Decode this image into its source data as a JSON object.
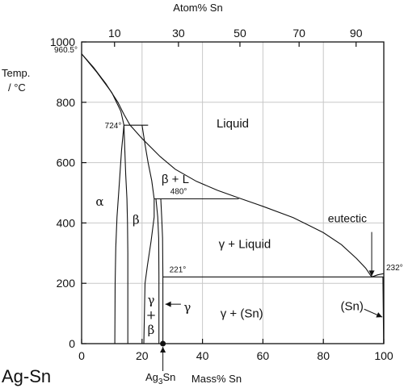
{
  "chart_data": {
    "type": "phase-diagram",
    "title": "Ag-Sn",
    "xlabel": "Mass% Sn",
    "x2label": "Atom% Sn",
    "ylabel": "Temp. / °C",
    "xlim": [
      0,
      100
    ],
    "ylim": [
      0,
      1000
    ],
    "x_ticks": [
      0,
      20,
      40,
      60,
      80,
      100
    ],
    "x2_ticks": [
      10,
      30,
      50,
      70,
      90
    ],
    "y_ticks": [
      0,
      200,
      400,
      600,
      800,
      1000
    ],
    "grid": true,
    "series": [
      {
        "kind": "liquidus",
        "points": [
          [
            0,
            960.5
          ],
          [
            4,
            915
          ],
          [
            8,
            862
          ],
          [
            12,
            800
          ],
          [
            14,
            760
          ],
          [
            16,
            725
          ],
          [
            20,
            680
          ],
          [
            26,
            620
          ],
          [
            31,
            578
          ],
          [
            38,
            538
          ],
          [
            45,
            508
          ],
          [
            52,
            483
          ],
          [
            60,
            455
          ],
          [
            70,
            418
          ],
          [
            80,
            368
          ],
          [
            86,
            328
          ],
          [
            91,
            282
          ],
          [
            94,
            250
          ],
          [
            96,
            221
          ],
          [
            98,
            228
          ],
          [
            100,
            232
          ]
        ]
      },
      {
        "kind": "solidus-alpha",
        "points": [
          [
            0,
            960.5
          ],
          [
            5,
            900
          ],
          [
            10,
            832
          ],
          [
            13,
            770
          ],
          [
            14,
            724
          ],
          [
            13.2,
            640
          ],
          [
            12.4,
            520
          ],
          [
            11.7,
            420
          ],
          [
            11.3,
            320
          ],
          [
            11.1,
            200
          ],
          [
            11,
            0
          ]
        ]
      },
      {
        "kind": "beta-left",
        "points": [
          [
            14,
            724
          ],
          [
            14.3,
            640
          ],
          [
            14.6,
            560
          ],
          [
            15,
            480
          ],
          [
            15.2,
            400
          ],
          [
            15.3,
            300
          ],
          [
            15.3,
            200
          ],
          [
            15.3,
            0
          ]
        ]
      },
      {
        "kind": "beta-right",
        "points": [
          [
            20,
            724
          ],
          [
            21,
            660
          ],
          [
            22,
            600
          ],
          [
            23.2,
            540
          ],
          [
            24,
            480
          ],
          [
            24,
            420
          ],
          [
            23,
            340
          ],
          [
            21.8,
            260
          ],
          [
            21,
            200
          ],
          [
            20.6,
            0
          ]
        ]
      },
      {
        "kind": "peritectic-724",
        "points": [
          [
            14,
            724
          ],
          [
            22,
            724
          ]
        ]
      },
      {
        "kind": "peritectic-480",
        "points": [
          [
            24,
            480
          ],
          [
            52,
            480
          ]
        ]
      },
      {
        "kind": "eutectic-221",
        "points": [
          [
            26.9,
            221
          ],
          [
            100,
            221
          ]
        ]
      },
      {
        "kind": "gamma-left",
        "points": [
          [
            24.6,
            480
          ],
          [
            25.2,
            420
          ],
          [
            25.5,
            350
          ],
          [
            25.6,
            221
          ],
          [
            25.6,
            0
          ]
        ]
      },
      {
        "kind": "gamma-right",
        "points": [
          [
            26.2,
            480
          ],
          [
            26.5,
            420
          ],
          [
            26.8,
            350
          ],
          [
            26.9,
            221
          ],
          [
            26.9,
            0
          ]
        ]
      },
      {
        "kind": "tin-solvus",
        "points": [
          [
            99.7,
            221
          ],
          [
            99.85,
            100
          ],
          [
            99.95,
            0
          ]
        ]
      }
    ],
    "annotations": [
      {
        "text": "960.5°",
        "x": 0,
        "y": 960.5
      },
      {
        "text": "724°",
        "x": 14,
        "y": 724
      },
      {
        "text": "480°",
        "x": 24,
        "y": 480
      },
      {
        "text": "221°",
        "x": 26.9,
        "y": 221
      },
      {
        "text": "232°",
        "x": 100,
        "y": 232
      },
      {
        "text": "eutectic",
        "x": 96,
        "y": 221
      },
      {
        "text": "Ag3Sn",
        "x": 26.9,
        "y": 0
      }
    ],
    "regions": [
      {
        "text": "Liquid",
        "x": 50,
        "y": 730
      },
      {
        "text": "β + L",
        "x": 31,
        "y": 545
      },
      {
        "text": "γ + Liquid",
        "x": 54,
        "y": 330
      },
      {
        "text": "α",
        "x": 6,
        "y": 470
      },
      {
        "text": "β",
        "x": 18,
        "y": 410
      },
      {
        "text": "γ",
        "x": 23,
        "y": 145
      },
      {
        "text": "+",
        "x": 23,
        "y": 95
      },
      {
        "text": "β",
        "x": 23,
        "y": 45
      },
      {
        "text": "γ",
        "x": 35,
        "y": 120
      },
      {
        "text": "γ + (Sn)",
        "x": 53,
        "y": 100
      },
      {
        "text": "(Sn)",
        "x": 89.5,
        "y": 125
      }
    ]
  },
  "labels": {
    "title": "Ag-Sn",
    "x_axis": "Mass% Sn",
    "x2_axis": "Atom% Sn",
    "y_axis_line1": "Temp.",
    "y_axis_line2": "/ °C",
    "ag3sn_main": "Ag",
    "ag3sn_sub": "3",
    "ag3sn_tail": "Sn"
  }
}
